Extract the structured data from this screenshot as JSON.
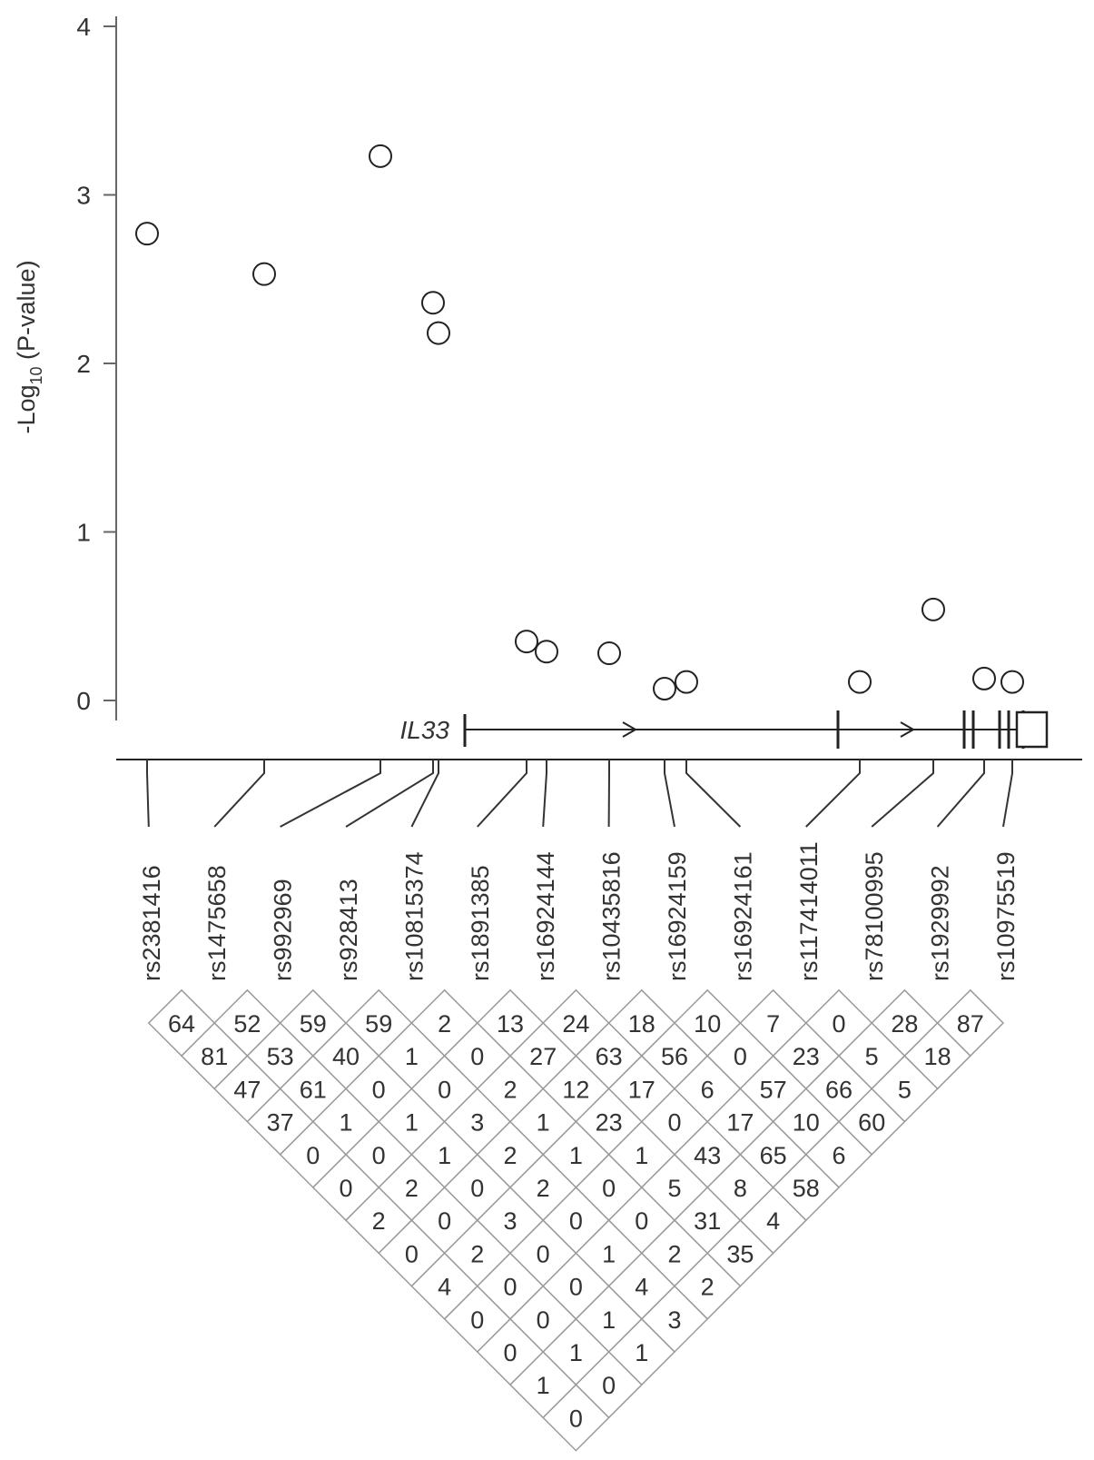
{
  "chart_data": {
    "type": "scatter",
    "ylabel_main": "-Log",
    "ylabel_sub": "10",
    "ylabel_tail": " (P-value)",
    "ylim": [
      0,
      4
    ],
    "yticks": [
      "0",
      "1",
      "2",
      "3",
      "4"
    ],
    "marker": "open-circle",
    "gene": {
      "label": "IL33",
      "exon_count_shown": 8,
      "direction": "forward"
    },
    "snps": [
      "rs2381416",
      "rs1475658",
      "rs992969",
      "rs928413",
      "rs10815374",
      "rs1891385",
      "rs16924144",
      "rs10435816",
      "rs16924159",
      "rs16924161",
      "rs117414011",
      "rs78100995",
      "rs1929992",
      "rs10975519"
    ],
    "points": [
      {
        "snp": "rs2381416",
        "y": 2.77
      },
      {
        "snp": "rs1475658",
        "y": 2.53
      },
      {
        "snp": "rs992969",
        "y": 3.23
      },
      {
        "snp": "rs928413",
        "y": 2.36
      },
      {
        "snp": "rs10815374",
        "y": 2.18
      },
      {
        "snp": "rs1891385",
        "y": 0.35
      },
      {
        "snp": "rs16924144",
        "y": 0.29
      },
      {
        "snp": "rs10435816",
        "y": 0.28
      },
      {
        "snp": "rs16924159",
        "y": 0.07
      },
      {
        "snp": "rs16924161",
        "y": 0.11
      },
      {
        "snp": "rs117414011",
        "y": 0.11
      },
      {
        "snp": "rs78100995",
        "y": 0.54
      },
      {
        "snp": "rs1929992",
        "y": 0.13
      },
      {
        "snp": "rs10975519",
        "y": 0.11
      }
    ],
    "ld_matrix_rows": [
      [
        "64",
        "52",
        "59",
        "59",
        "2",
        "13",
        "24",
        "18",
        "10",
        "7",
        "0",
        "28",
        "87"
      ],
      [
        "81",
        "53",
        "40",
        "1",
        "0",
        "27",
        "63",
        "56",
        "0",
        "23",
        "5",
        "18"
      ],
      [
        "47",
        "61",
        "0",
        "0",
        "2",
        "12",
        "17",
        "6",
        "57",
        "66",
        "5"
      ],
      [
        "37",
        "1",
        "1",
        "3",
        "1",
        "23",
        "0",
        "17",
        "10",
        "60"
      ],
      [
        "0",
        "0",
        "1",
        "2",
        "1",
        "1",
        "43",
        "65",
        "6"
      ],
      [
        "0",
        "2",
        "0",
        "2",
        "0",
        "5",
        "8",
        "58"
      ],
      [
        "2",
        "0",
        "3",
        "0",
        "0",
        "31",
        "4"
      ],
      [
        "0",
        "2",
        "0",
        "1",
        "2",
        "35"
      ],
      [
        "4",
        "0",
        "0",
        "4",
        "2"
      ],
      [
        "0",
        "0",
        "1",
        "3"
      ],
      [
        "0",
        "1",
        "1"
      ],
      [
        "1",
        "0"
      ],
      [
        "0"
      ]
    ]
  }
}
